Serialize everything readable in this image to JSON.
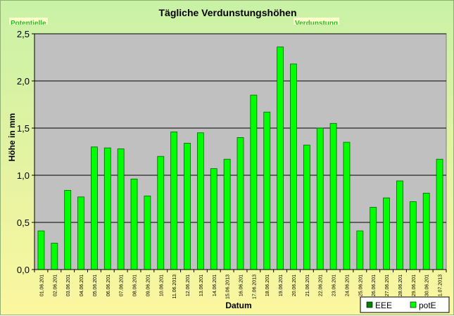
{
  "header": {
    "left_label": "Potentielle",
    "right_label": "Verdunstung"
  },
  "chart_data": {
    "type": "bar",
    "title": "Tägliche Verdunstungshöhen",
    "xlabel": "Datum",
    "ylabel": "Höhe in mm",
    "ylim": [
      0,
      2.5
    ],
    "yticks": [
      "0,0",
      "0,5",
      "1,0",
      "1,5",
      "2,0",
      "2,5"
    ],
    "grid": true,
    "legend_position": "bottom-right",
    "categories": [
      "01.06.201",
      "02.06.201",
      "03.06.201",
      "04.06.201",
      "05.06.201",
      "06.06.201",
      "07.06.201",
      "08.06.201",
      "09.06.201",
      "10.06.201",
      "11.06.2013",
      "12.06.201",
      "13.06.201",
      "14.06.201",
      "15.06.2013",
      "16.06.201",
      "17.06.2013",
      "18.06.201",
      "19.06.201",
      "20.06.201",
      "21.06.201",
      "22.06.201",
      "23.06.201",
      "24.06.201",
      "25.06.201",
      "26.06.201",
      "27.06.201",
      "28.06.201",
      "29.06.201",
      "30.06.201",
      "01.07.2013"
    ],
    "series": [
      {
        "name": "EEE",
        "color": "#008000",
        "values": [
          0.41,
          0.28,
          0.84,
          0.77,
          1.3,
          1.29,
          1.28,
          0.96,
          0.78,
          1.2,
          1.46,
          1.34,
          1.45,
          1.07,
          1.17,
          1.4,
          1.85,
          1.67,
          2.36,
          2.18,
          1.32,
          1.5,
          1.55,
          1.35,
          0.41,
          0.66,
          0.76,
          0.94,
          0.72,
          0.81,
          1.17
        ]
      },
      {
        "name": "potE",
        "color": "#00ff00",
        "values": [
          0.41,
          0.28,
          0.84,
          0.77,
          1.3,
          1.29,
          1.28,
          0.96,
          0.78,
          1.2,
          1.46,
          1.34,
          1.45,
          1.07,
          1.17,
          1.4,
          1.85,
          1.67,
          2.36,
          2.18,
          1.32,
          1.5,
          1.55,
          1.35,
          0.41,
          0.66,
          0.76,
          0.94,
          0.72,
          0.81,
          1.17
        ]
      }
    ]
  },
  "colors": {
    "plot_background": "#c0c0c0",
    "bar_fill": "#00ff00",
    "bar_stroke": "#006400",
    "gridline": "#000000"
  }
}
